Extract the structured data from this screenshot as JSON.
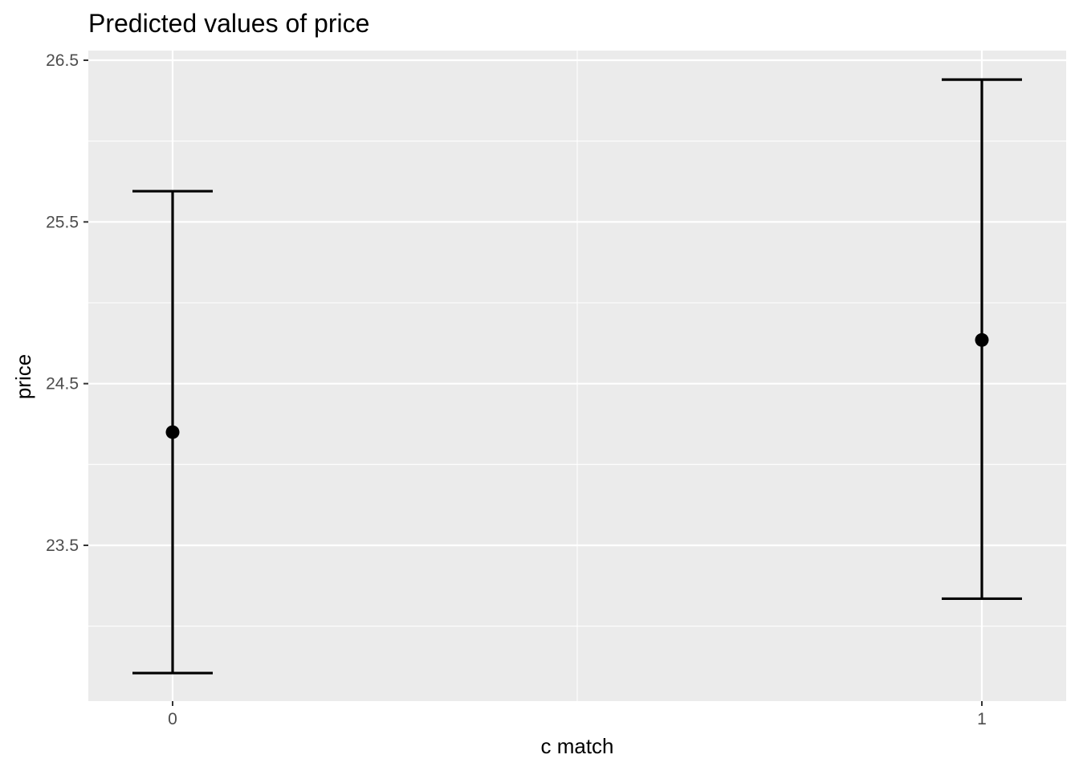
{
  "chart_data": {
    "type": "scatter",
    "title": "Predicted values of price",
    "xlabel": "c match",
    "ylabel": "price",
    "categories": [
      "0",
      "1"
    ],
    "series": [
      {
        "points": [
          {
            "x": "0",
            "y": 24.2,
            "ymin": 22.71,
            "ymax": 25.69
          },
          {
            "x": "1",
            "y": 24.77,
            "ymin": 23.17,
            "ymax": 26.38
          }
        ]
      }
    ],
    "y_ticks": [
      "23.5",
      "24.5",
      "25.5",
      "26.5"
    ],
    "y_tick_values": [
      23.5,
      24.5,
      25.5,
      26.5
    ],
    "ylim": [
      22.54,
      26.55
    ],
    "grid": true,
    "panel_background": "#EBEBEB",
    "grid_color": "#FFFFFF",
    "mark_color": "#000000"
  }
}
